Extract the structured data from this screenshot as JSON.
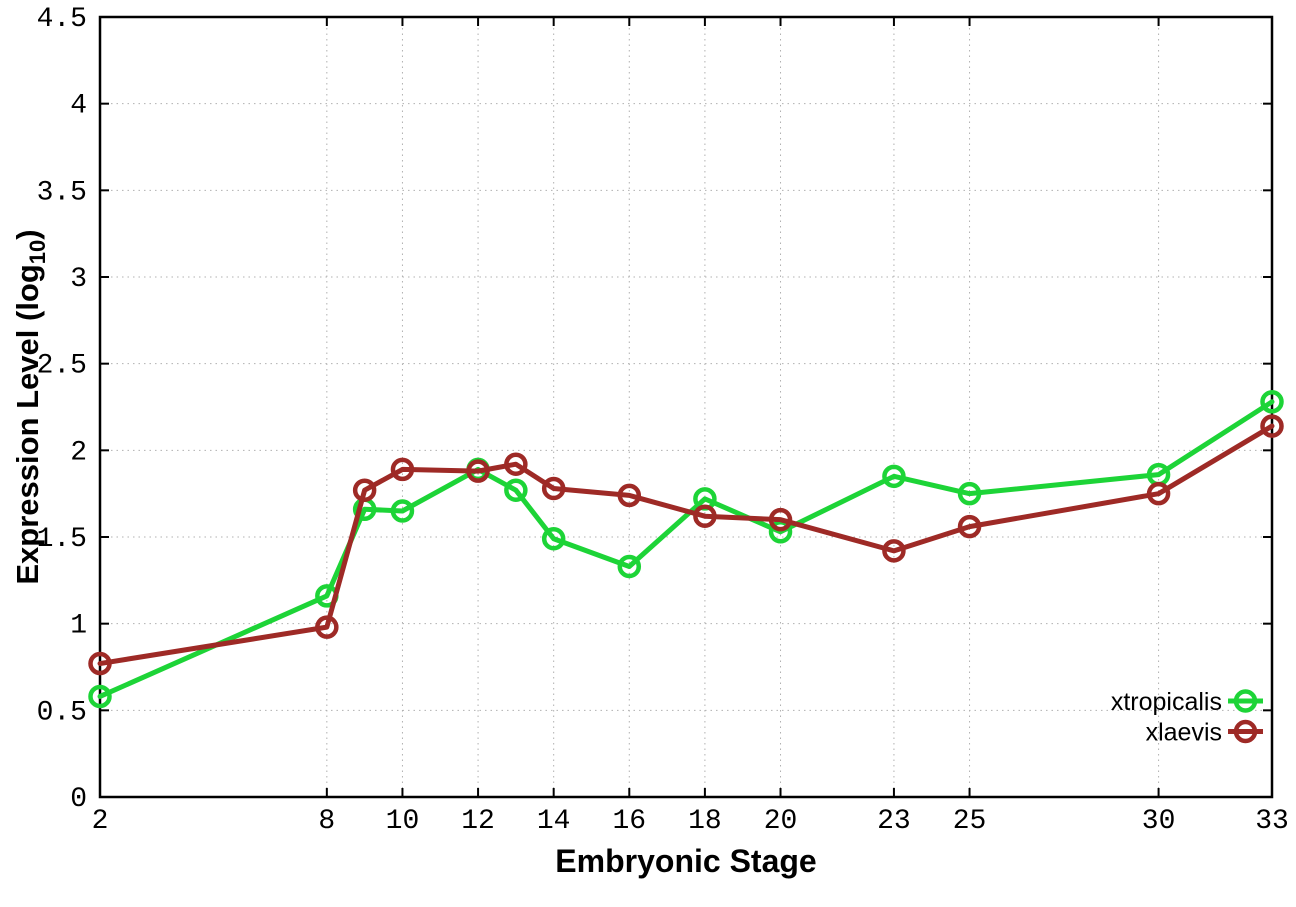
{
  "chart_data": {
    "type": "line",
    "title": "",
    "xlabel": "Embryonic Stage",
    "ylabel": "Expression Level (log10)",
    "ylabel_parts": {
      "main": "Expression Level (log",
      "sub": "10",
      "close": ")"
    },
    "x": [
      2,
      8,
      9,
      10,
      12,
      13,
      14,
      16,
      18,
      20,
      23,
      25,
      30,
      33
    ],
    "series": [
      {
        "name": "xtropicalis",
        "color": "#1dd437",
        "values": [
          0.58,
          1.16,
          1.66,
          1.65,
          1.89,
          1.77,
          1.49,
          1.33,
          1.72,
          1.53,
          1.85,
          1.75,
          1.86,
          2.28
        ]
      },
      {
        "name": "xlaevis",
        "color": "#9e2a26",
        "values": [
          0.77,
          0.98,
          1.77,
          1.89,
          1.88,
          1.92,
          1.78,
          1.74,
          1.62,
          1.6,
          1.42,
          1.56,
          1.75,
          2.14
        ]
      }
    ],
    "xlim": [
      2,
      33
    ],
    "ylim": [
      0,
      4.5
    ],
    "x_ticks": [
      2,
      8,
      10,
      12,
      14,
      16,
      18,
      20,
      23,
      25,
      30,
      33
    ],
    "y_ticks": [
      0,
      0.5,
      1,
      1.5,
      2,
      2.5,
      3,
      3.5,
      4,
      4.5
    ],
    "grid": "dotted",
    "grid_color": "#b0b0b0",
    "frame_color": "#000000",
    "marker": "open-circle",
    "legend_position": "inside-bottom-right",
    "legend_entries": [
      "xtropicalis",
      "xlaevis"
    ]
  }
}
